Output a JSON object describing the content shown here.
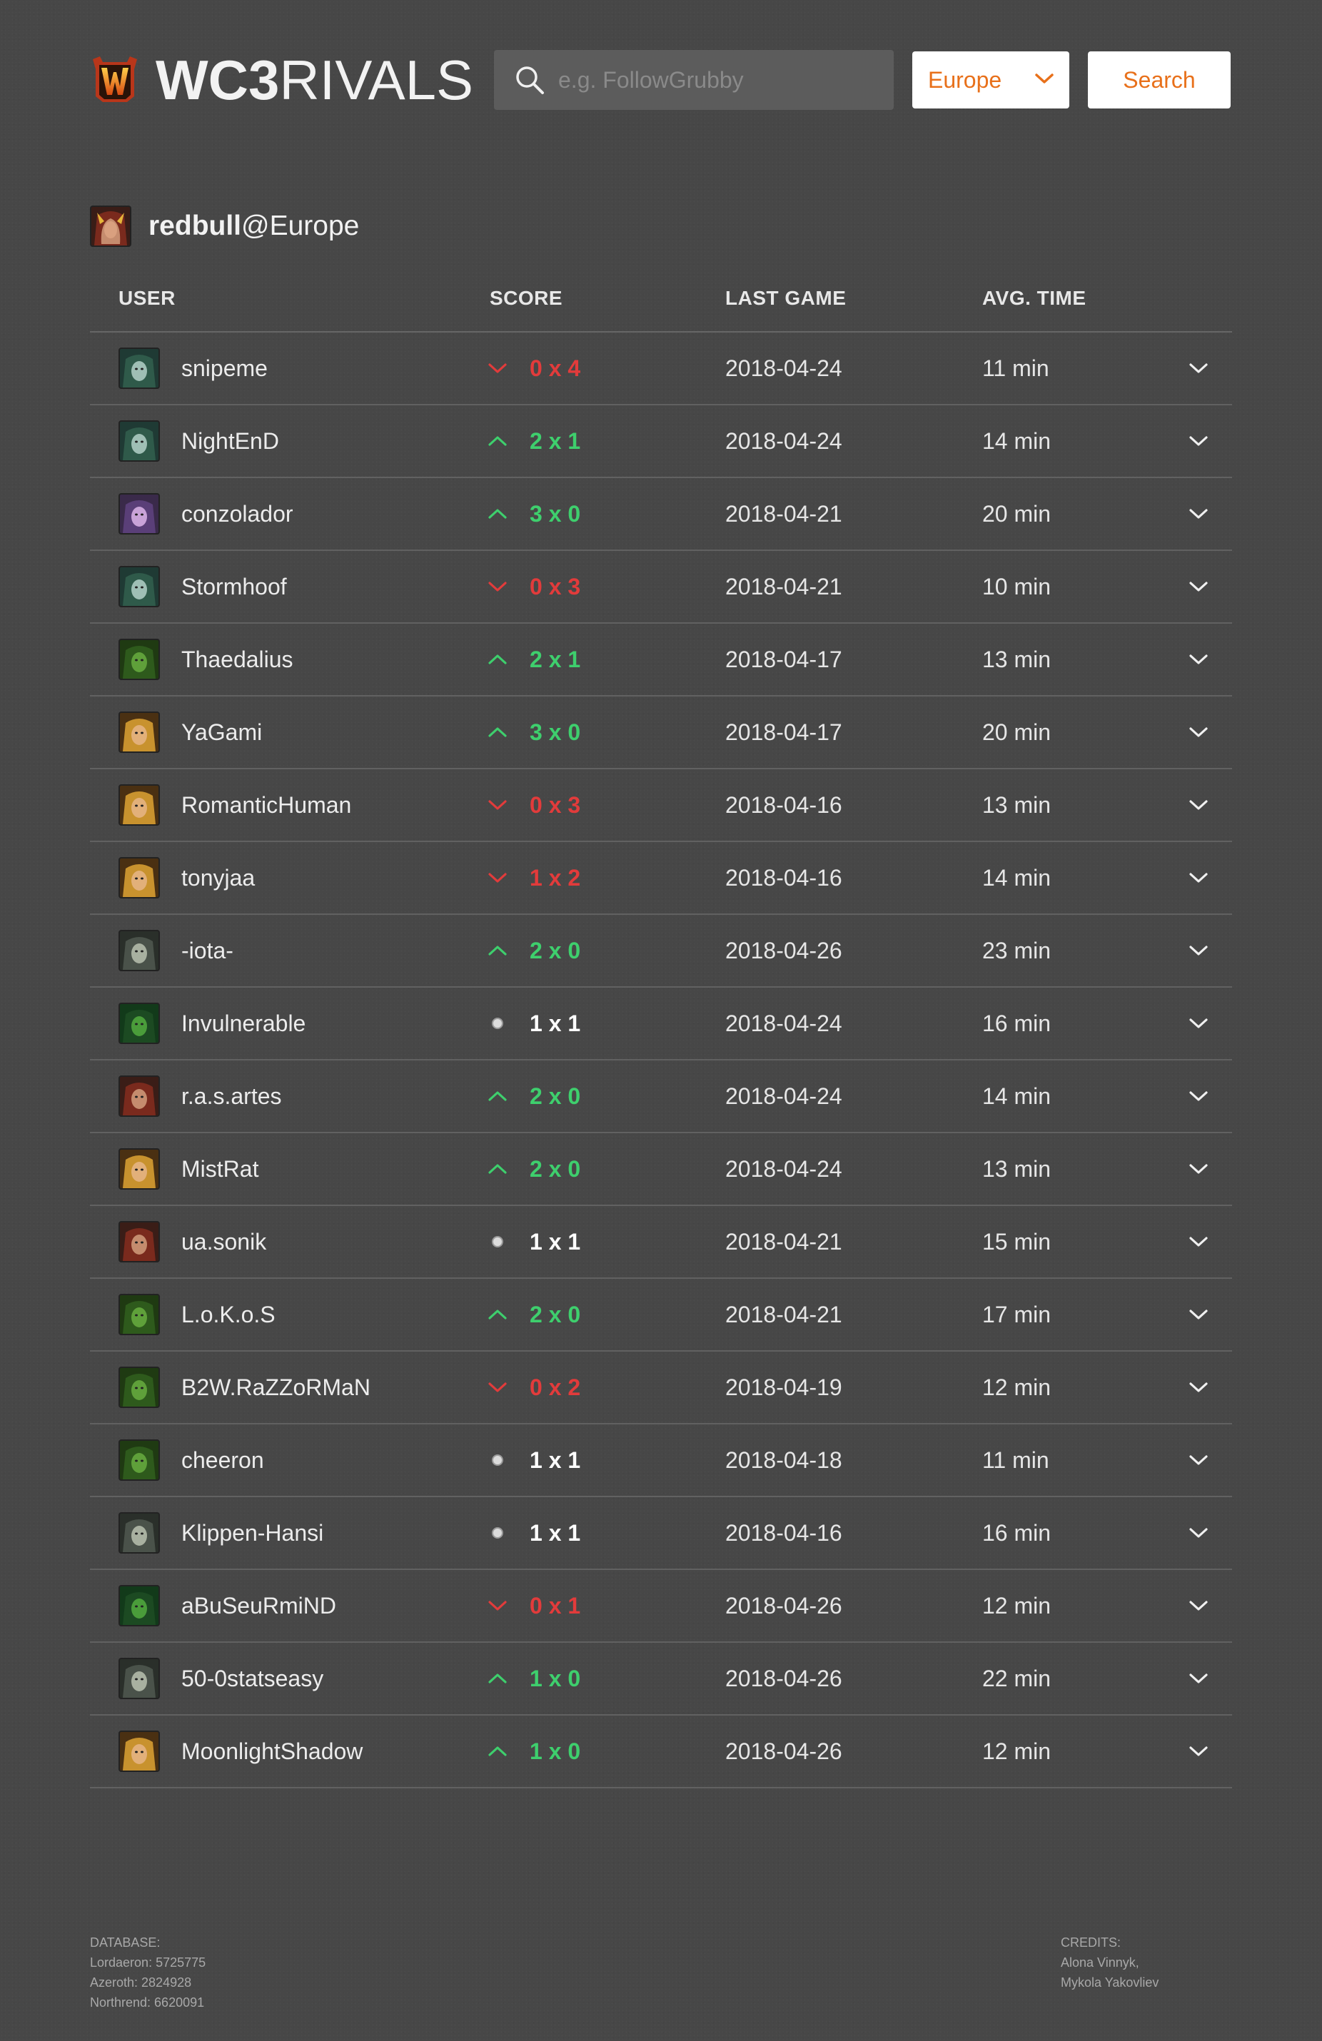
{
  "app": {
    "title_bold": "WC3",
    "title_thin": "RIVALS"
  },
  "search": {
    "placeholder": "e.g. FollowGrubby",
    "value": "",
    "region": "Europe",
    "button_label": "Search"
  },
  "profile": {
    "name": "redbull",
    "region_suffix": "@Europe",
    "portrait": "blood-elf"
  },
  "table": {
    "headers": {
      "user": "USER",
      "score": "SCORE",
      "last_game": "LAST GAME",
      "avg_time": "AVG. TIME"
    },
    "rows": [
      {
        "user": "snipeme",
        "portrait": "nightelf",
        "result": "loss",
        "score": "0 x 4",
        "last_game": "2018-04-24",
        "avg_time": "11 min"
      },
      {
        "user": "NightEnD",
        "portrait": "nightelf",
        "result": "win",
        "score": "2 x 1",
        "last_game": "2018-04-24",
        "avg_time": "14 min"
      },
      {
        "user": "conzolador",
        "portrait": "nightelf-female",
        "result": "win",
        "score": "3 x 0",
        "last_game": "2018-04-21",
        "avg_time": "20 min"
      },
      {
        "user": "Stormhoof",
        "portrait": "nightelf",
        "result": "loss",
        "score": "0 x 3",
        "last_game": "2018-04-21",
        "avg_time": "10 min"
      },
      {
        "user": "Thaedalius",
        "portrait": "orc",
        "result": "win",
        "score": "2 x 1",
        "last_game": "2018-04-17",
        "avg_time": "13 min"
      },
      {
        "user": "YaGami",
        "portrait": "human",
        "result": "win",
        "score": "3 x 0",
        "last_game": "2018-04-17",
        "avg_time": "20 min"
      },
      {
        "user": "RomanticHuman",
        "portrait": "human",
        "result": "loss",
        "score": "0 x 3",
        "last_game": "2018-04-16",
        "avg_time": "13 min"
      },
      {
        "user": "tonyjaa",
        "portrait": "human",
        "result": "loss",
        "score": "1 x 2",
        "last_game": "2018-04-16",
        "avg_time": "14 min"
      },
      {
        "user": "-iota-",
        "portrait": "undead",
        "result": "win",
        "score": "2 x 0",
        "last_game": "2018-04-26",
        "avg_time": "23 min"
      },
      {
        "user": "Invulnerable",
        "portrait": "orc-green",
        "result": "draw",
        "score": "1 x 1",
        "last_game": "2018-04-24",
        "avg_time": "16 min"
      },
      {
        "user": "r.a.s.artes",
        "portrait": "blood-elf",
        "result": "win",
        "score": "2 x 0",
        "last_game": "2018-04-24",
        "avg_time": "14 min"
      },
      {
        "user": "MistRat",
        "portrait": "human",
        "result": "win",
        "score": "2 x 0",
        "last_game": "2018-04-24",
        "avg_time": "13 min"
      },
      {
        "user": "ua.sonik",
        "portrait": "blood-elf",
        "result": "draw",
        "score": "1 x 1",
        "last_game": "2018-04-21",
        "avg_time": "15 min"
      },
      {
        "user": "L.o.K.o.S",
        "portrait": "orc",
        "result": "win",
        "score": "2 x 0",
        "last_game": "2018-04-21",
        "avg_time": "17 min"
      },
      {
        "user": "B2W.RaZZoRMaN",
        "portrait": "orc",
        "result": "loss",
        "score": "0 x 2",
        "last_game": "2018-04-19",
        "avg_time": "12 min"
      },
      {
        "user": "cheeron",
        "portrait": "orc",
        "result": "draw",
        "score": "1 x 1",
        "last_game": "2018-04-18",
        "avg_time": "11 min"
      },
      {
        "user": "Klippen-Hansi",
        "portrait": "undead",
        "result": "draw",
        "score": "1 x 1",
        "last_game": "2018-04-16",
        "avg_time": "16 min"
      },
      {
        "user": "aBuSeuRmiND",
        "portrait": "orc-green",
        "result": "loss",
        "score": "0 x 1",
        "last_game": "2018-04-26",
        "avg_time": "12 min"
      },
      {
        "user": "50-0statseasy",
        "portrait": "undead",
        "result": "win",
        "score": "1 x 0",
        "last_game": "2018-04-26",
        "avg_time": "22 min"
      },
      {
        "user": "MoonlightShadow",
        "portrait": "human",
        "result": "win",
        "score": "1 x 0",
        "last_game": "2018-04-26",
        "avg_time": "12 min"
      }
    ]
  },
  "footer": {
    "database_label": "DATABASE:",
    "database_lines": [
      "Lordaeron: 5725775",
      "Azeroth: 2824928",
      "Northrend: 6620091"
    ],
    "credits_label": "CREDITS:",
    "credits_lines": [
      "Alona Vinnyk,",
      "Mykola Yakovliev"
    ]
  },
  "colors": {
    "accent": "#e8701a",
    "win": "#3ecf6d",
    "loss": "#e23b3b",
    "draw": "#ffffff",
    "background": "#474747"
  }
}
